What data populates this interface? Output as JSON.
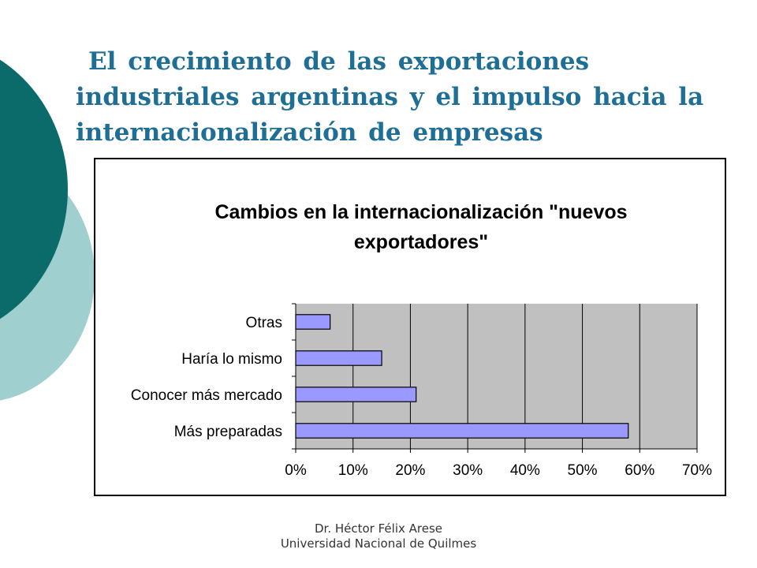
{
  "slide": {
    "title": "El crecimiento de las exportaciones industriales argentinas y el impulso hacia la internacionalización de empresas",
    "footer": {
      "author": "Dr. Héctor Félix Arese",
      "institution": "Universidad Nacional de Quilmes"
    }
  },
  "colors": {
    "title": "#1f6e95",
    "plot_background": "#c0c0c0",
    "bar_fill": "#9999ff",
    "bar_stroke": "#000000",
    "deco_dark": "#0b6b6b",
    "deco_light": "#9fcfcf"
  },
  "chart_data": {
    "type": "bar",
    "orientation": "horizontal",
    "title": "Cambios en la internacionalización \"nuevos exportadores\"",
    "title_lines": [
      "Cambios en la internacionalización \"nuevos",
      "exportadores\""
    ],
    "categories": [
      "Más preparadas",
      "Conocer más mercado",
      "Haría lo mismo",
      "Otras"
    ],
    "values": [
      0.58,
      0.21,
      0.15,
      0.06
    ],
    "xlim": [
      0,
      0.7
    ],
    "x_ticks": [
      0,
      0.1,
      0.2,
      0.3,
      0.4,
      0.5,
      0.6,
      0.7
    ],
    "x_tick_labels": [
      "0%",
      "10%",
      "20%",
      "30%",
      "40%",
      "50%",
      "60%",
      "70%"
    ],
    "xlabel": "",
    "ylabel": "",
    "grid": "vertical",
    "legend": "none"
  }
}
